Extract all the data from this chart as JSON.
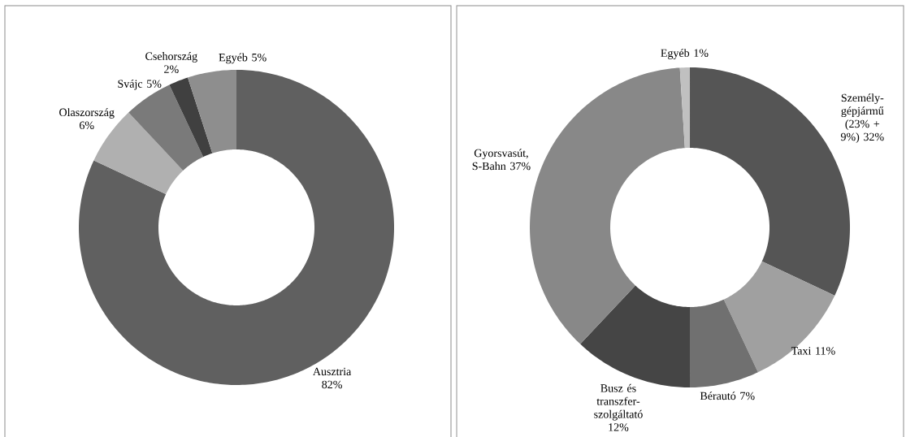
{
  "chart_data": [
    {
      "type": "donut",
      "categories": [
        "Ausztria",
        "Olaszország",
        "Svájc",
        "Csehország",
        "Egyéb"
      ],
      "values": [
        82,
        6,
        5,
        2,
        5
      ],
      "value_labels": [
        "82%",
        "6%",
        "5%",
        "2%",
        "5%"
      ],
      "colors": [
        "#606060",
        "#b0b0b0",
        "#7a7a7a",
        "#404040",
        "#8e8e8e"
      ]
    },
    {
      "type": "donut",
      "categories": [
        "Személy-gépjármű (23% + 9%)",
        "Taxi",
        "Bérautó",
        "Busz és transzfer-szolgáltató",
        "Gyorsvasút, S-Bahn",
        "Egyéb"
      ],
      "values": [
        32,
        11,
        7,
        12,
        37,
        1
      ],
      "value_labels": [
        "32%",
        "11%",
        "7%",
        "12%",
        "37%",
        "1%"
      ],
      "colors": [
        "#555555",
        "#a0a0a0",
        "#707070",
        "#454545",
        "#888888",
        "#c0c0c0"
      ]
    }
  ]
}
